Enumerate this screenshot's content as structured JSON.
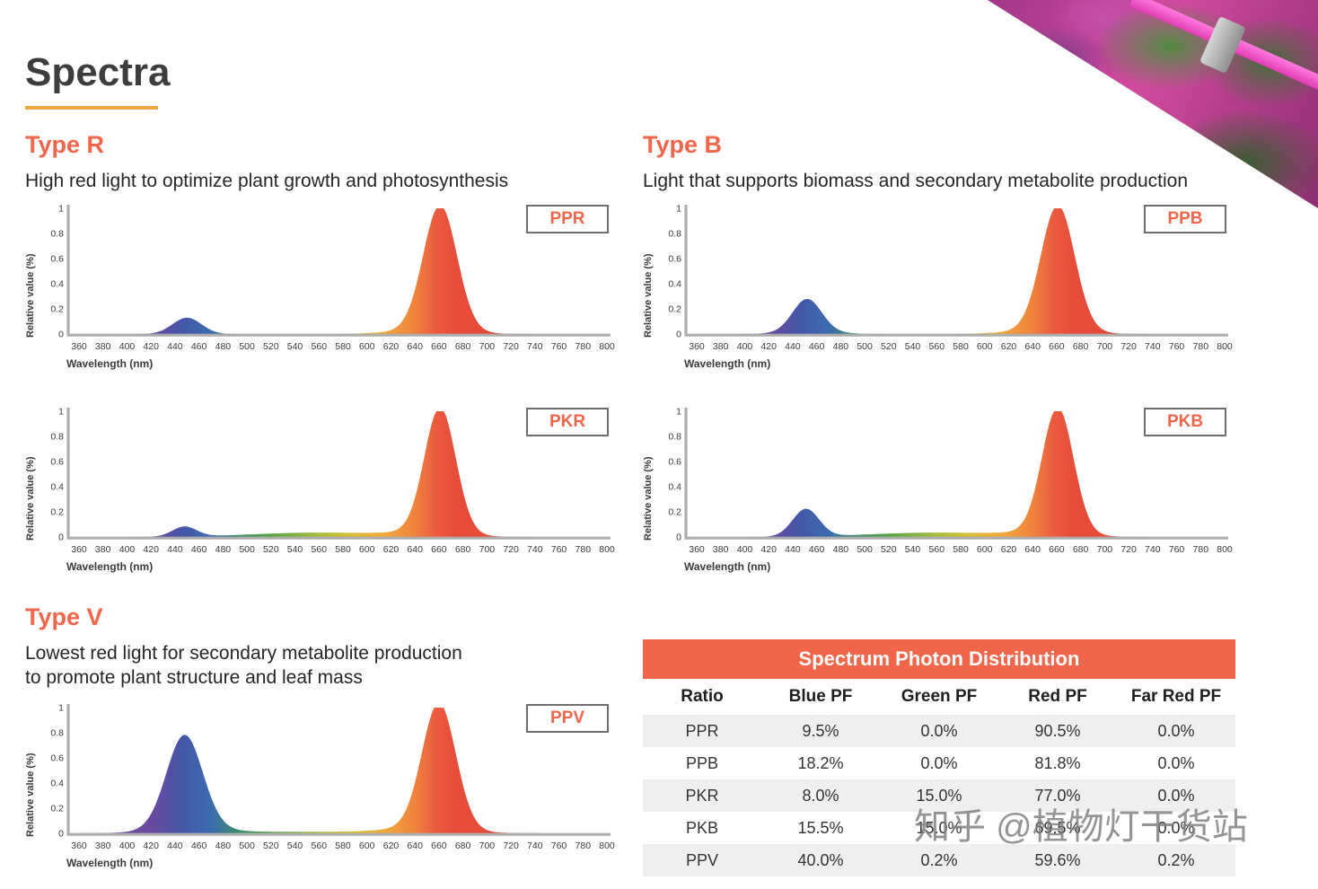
{
  "page": {
    "title": "Spectra"
  },
  "colors": {
    "accent": "#f1664a",
    "underline": "#f2a73d",
    "axis": "#adadad",
    "row_stripe": "#efefef",
    "table_header_bg": "#f1664a"
  },
  "photo": {
    "alt": "plants growing under magenta LED grow light"
  },
  "sections": [
    {
      "id": "type-r",
      "heading": "Type R",
      "description": "High red light to optimize plant growth and photosynthesis"
    },
    {
      "id": "type-b",
      "heading": "Type B",
      "description": "Light that supports biomass and secondary metabolite production"
    },
    {
      "id": "type-v",
      "heading": "Type V",
      "description": "Lowest red light for secondary metabolite production\nto promote plant structure and leaf mass"
    }
  ],
  "spectrum_gradient": [
    {
      "nm": 360,
      "color": "#7a4a9e"
    },
    {
      "nm": 420,
      "color": "#6a4aa0"
    },
    {
      "nm": 445,
      "color": "#4556a8"
    },
    {
      "nm": 470,
      "color": "#3b6bb0"
    },
    {
      "nm": 495,
      "color": "#3f9168"
    },
    {
      "nm": 520,
      "color": "#57a447"
    },
    {
      "nm": 555,
      "color": "#9ebb3d"
    },
    {
      "nm": 585,
      "color": "#d6c134"
    },
    {
      "nm": 610,
      "color": "#eead3a"
    },
    {
      "nm": 638,
      "color": "#f0863e"
    },
    {
      "nm": 658,
      "color": "#ea5a3e"
    },
    {
      "nm": 675,
      "color": "#e64c39"
    },
    {
      "nm": 800,
      "color": "#dd4636"
    }
  ],
  "chart_data": [
    {
      "type": "area",
      "label": "PPR",
      "section": "Type R",
      "xlabel": "Wavelength (nm)",
      "ylabel": "Relative value (%)",
      "x_range": [
        360,
        800
      ],
      "x_tick_step": 20,
      "y_ticks": [
        0,
        0.2,
        0.4,
        0.6,
        0.8,
        1
      ],
      "ylim": [
        0,
        1
      ],
      "peaks": [
        {
          "name": "blue",
          "center": 450,
          "sigma": 12,
          "height": 0.13
        },
        {
          "name": "red",
          "center": 661,
          "sigma": 14,
          "height": 1.0
        },
        {
          "name": "red-base",
          "center": 650,
          "sigma": 30,
          "height": 0.03
        }
      ]
    },
    {
      "type": "area",
      "label": "PKR",
      "section": "Type R",
      "xlabel": "Wavelength (nm)",
      "ylabel": "Relative value (%)",
      "x_range": [
        360,
        800
      ],
      "x_tick_step": 20,
      "y_ticks": [
        0,
        0.2,
        0.4,
        0.6,
        0.8,
        1
      ],
      "ylim": [
        0,
        1
      ],
      "peaks": [
        {
          "name": "blue",
          "center": 448,
          "sigma": 10,
          "height": 0.08
        },
        {
          "name": "green",
          "center": 560,
          "sigma": 55,
          "height": 0.035
        },
        {
          "name": "red",
          "center": 661,
          "sigma": 13,
          "height": 1.0
        },
        {
          "name": "red-base",
          "center": 650,
          "sigma": 28,
          "height": 0.03
        }
      ]
    },
    {
      "type": "area",
      "label": "PPV",
      "section": "Type V",
      "xlabel": "Wavelength (nm)",
      "ylabel": "Relative value (%)",
      "x_range": [
        360,
        800
      ],
      "x_tick_step": 20,
      "y_ticks": [
        0,
        0.2,
        0.4,
        0.6,
        0.8,
        1
      ],
      "ylim": [
        0,
        1
      ],
      "peaks": [
        {
          "name": "blue",
          "center": 448,
          "sigma": 15,
          "height": 0.74
        },
        {
          "name": "blue-base",
          "center": 450,
          "sigma": 28,
          "height": 0.04
        },
        {
          "name": "mid",
          "center": 550,
          "sigma": 70,
          "height": 0.012
        },
        {
          "name": "red",
          "center": 660,
          "sigma": 14,
          "height": 1.0
        },
        {
          "name": "red-base",
          "center": 648,
          "sigma": 30,
          "height": 0.04
        }
      ]
    },
    {
      "type": "area",
      "label": "PPB",
      "section": "Type B",
      "xlabel": "Wavelength (nm)",
      "ylabel": "Relative value (%)",
      "x_range": [
        360,
        800
      ],
      "x_tick_step": 20,
      "y_ticks": [
        0,
        0.2,
        0.4,
        0.6,
        0.8,
        1
      ],
      "ylim": [
        0,
        1
      ],
      "peaks": [
        {
          "name": "blue",
          "center": 452,
          "sigma": 12,
          "height": 0.26
        },
        {
          "name": "blue-base",
          "center": 455,
          "sigma": 22,
          "height": 0.02
        },
        {
          "name": "red",
          "center": 661,
          "sigma": 14,
          "height": 1.0
        },
        {
          "name": "red-base",
          "center": 650,
          "sigma": 30,
          "height": 0.03
        }
      ]
    },
    {
      "type": "area",
      "label": "PKB",
      "section": "Type B",
      "xlabel": "Wavelength (nm)",
      "ylabel": "Relative value (%)",
      "x_range": [
        360,
        800
      ],
      "x_tick_step": 20,
      "y_ticks": [
        0,
        0.2,
        0.4,
        0.6,
        0.8,
        1
      ],
      "ylim": [
        0,
        1
      ],
      "peaks": [
        {
          "name": "blue",
          "center": 451,
          "sigma": 11,
          "height": 0.22
        },
        {
          "name": "green",
          "center": 560,
          "sigma": 55,
          "height": 0.035
        },
        {
          "name": "red",
          "center": 661,
          "sigma": 13,
          "height": 1.0
        },
        {
          "name": "red-base",
          "center": 650,
          "sigma": 28,
          "height": 0.03
        }
      ]
    }
  ],
  "table": {
    "title": "Spectrum Photon Distribution",
    "columns": [
      "Ratio",
      "Blue PF",
      "Green PF",
      "Red PF",
      "Far Red PF"
    ],
    "rows": [
      [
        "PPR",
        "9.5%",
        "0.0%",
        "90.5%",
        "0.0%"
      ],
      [
        "PPB",
        "18.2%",
        "0.0%",
        "81.8%",
        "0.0%"
      ],
      [
        "PKR",
        "8.0%",
        "15.0%",
        "77.0%",
        "0.0%"
      ],
      [
        "PKB",
        "15.5%",
        "15.0%",
        "69.5%",
        "0.0%"
      ],
      [
        "PPV",
        "40.0%",
        "0.2%",
        "59.6%",
        "0.2%"
      ]
    ]
  },
  "watermark": "知乎 @植物灯干货站"
}
